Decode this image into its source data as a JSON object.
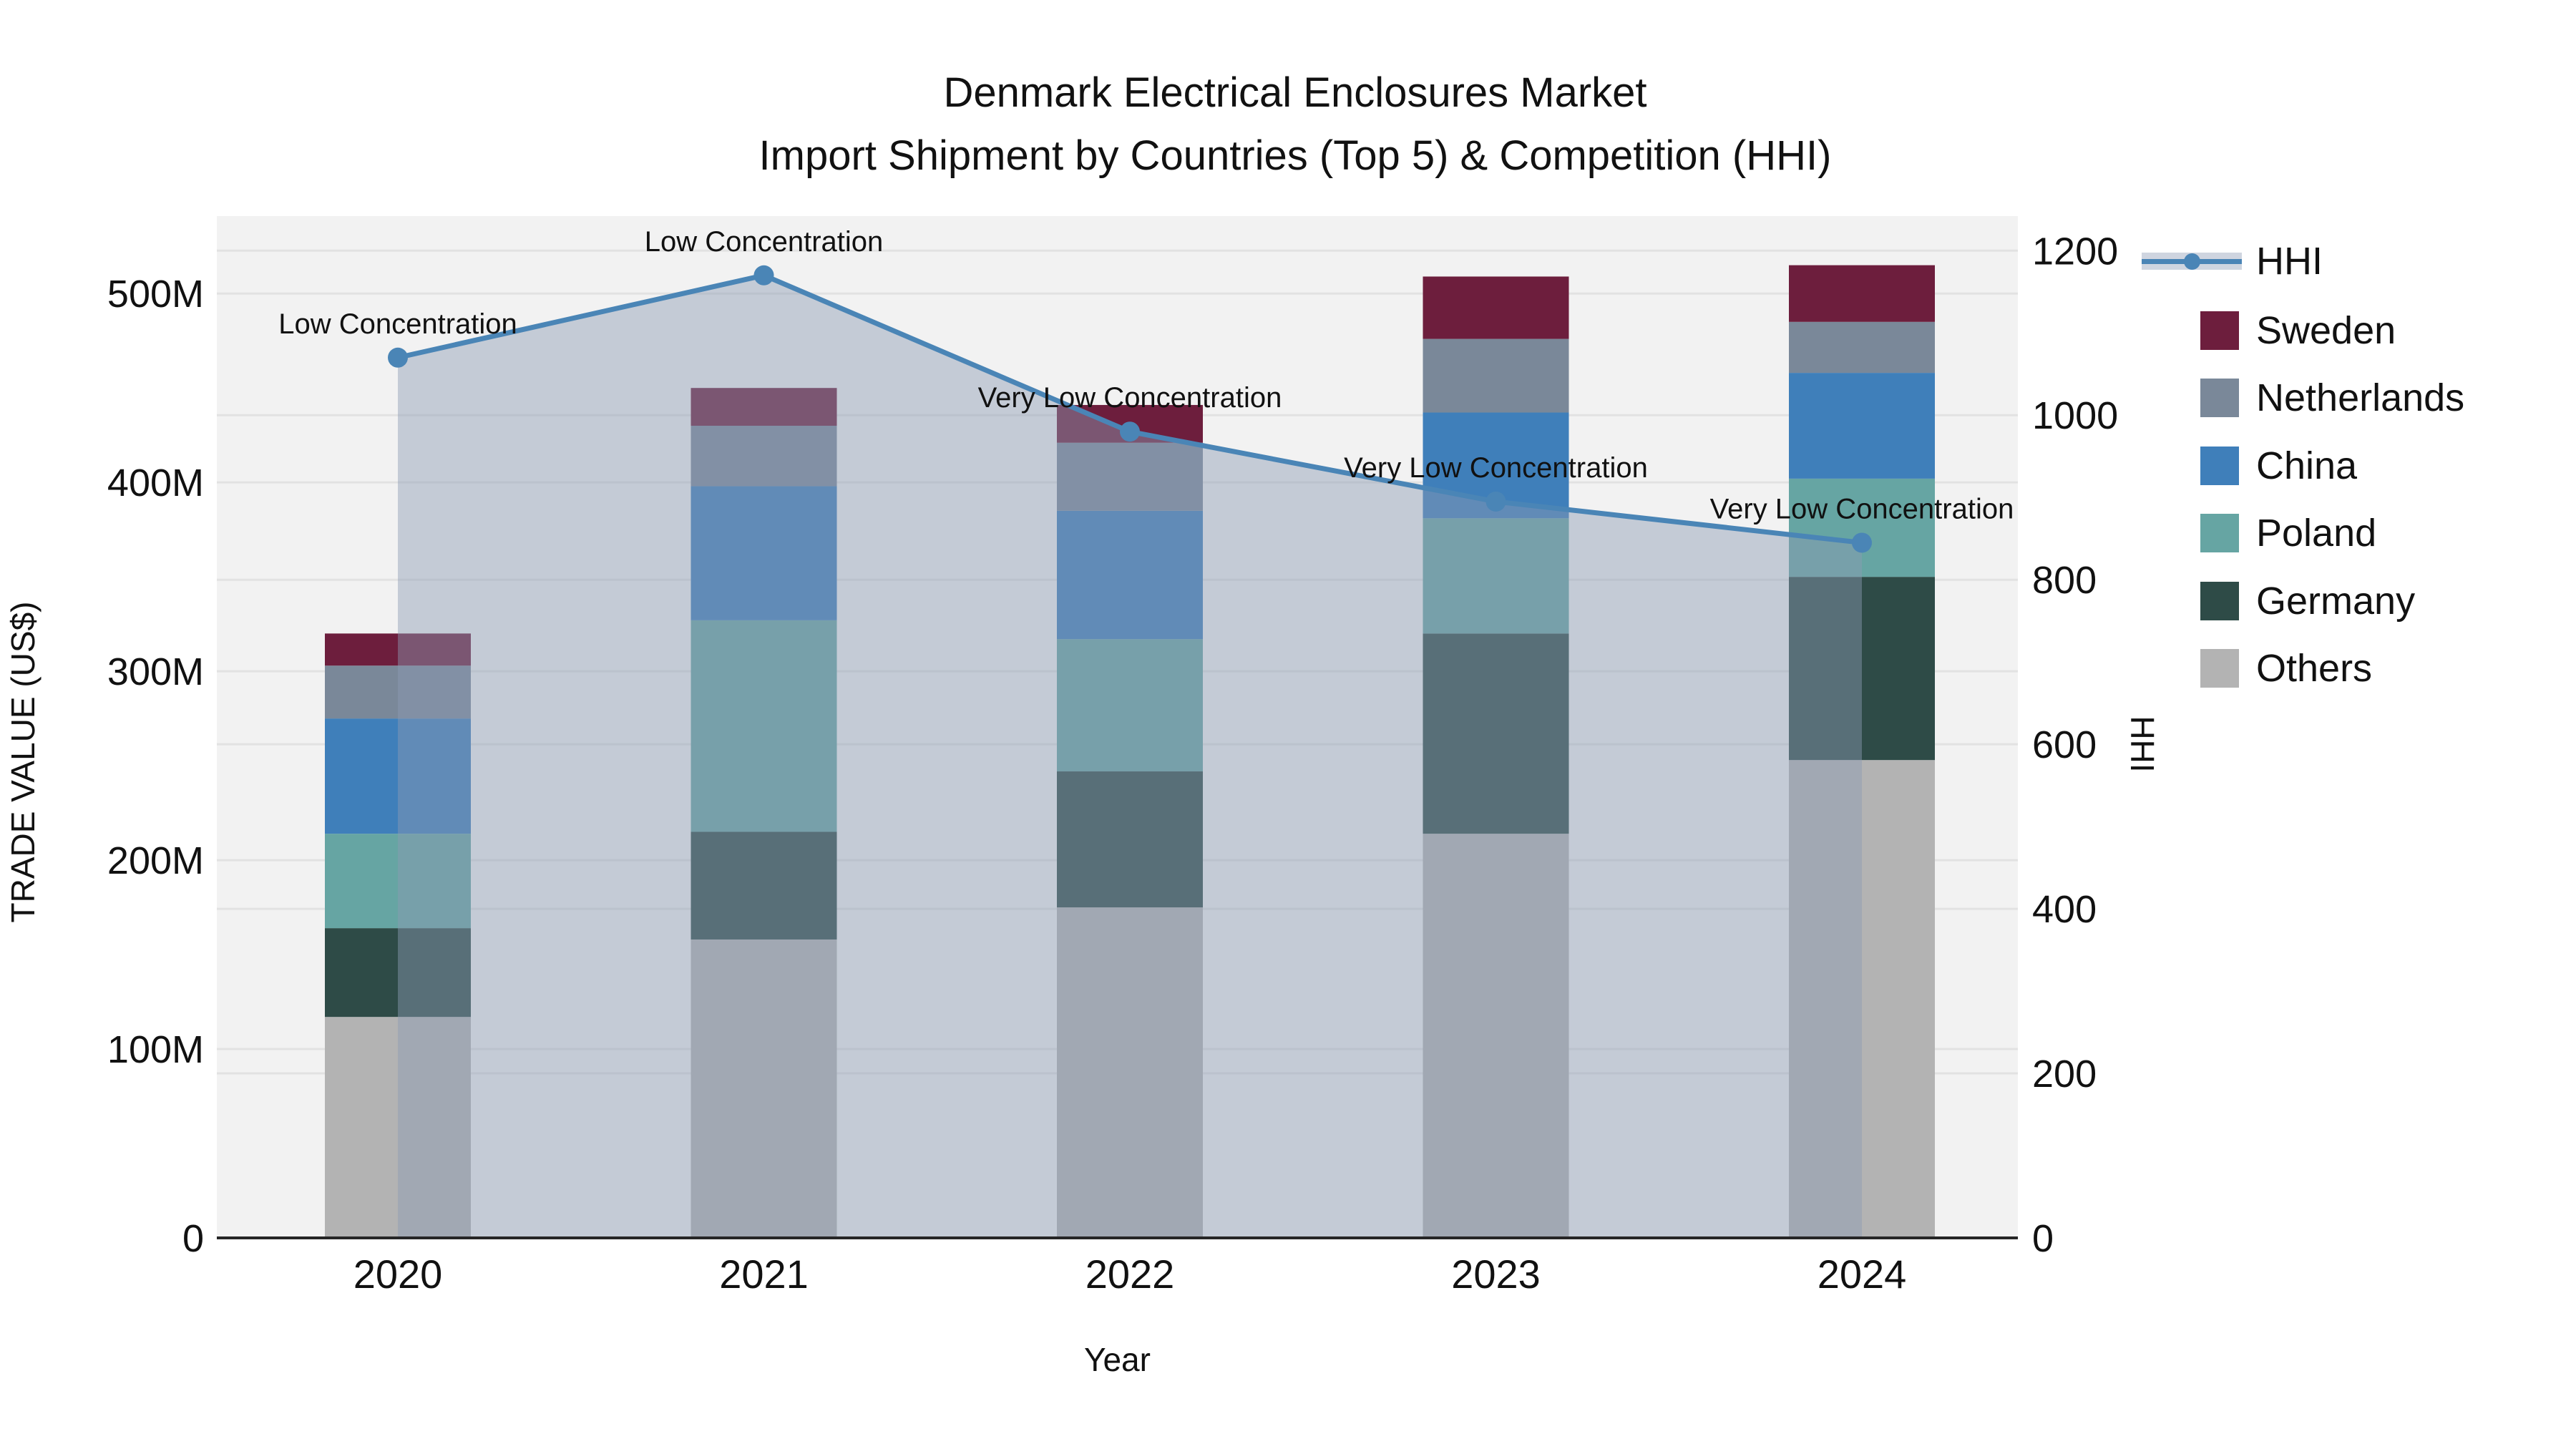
{
  "title": {
    "line1": "Denmark Electrical Enclosures Market",
    "line2": "Import Shipment by Countries (Top 5) & Competition (HHI)"
  },
  "legend": {
    "items": [
      {
        "label": "HHI",
        "type": "line",
        "color": "#4a85b6",
        "band_color": "#cfd5e0"
      },
      {
        "label": "Sweden",
        "type": "box",
        "color": "#6d1e3d"
      },
      {
        "label": "Netherlands",
        "type": "box",
        "color": "#7a8899"
      },
      {
        "label": "China",
        "type": "box",
        "color": "#3f7fba"
      },
      {
        "label": "Poland",
        "type": "box",
        "color": "#66a5a3"
      },
      {
        "label": "Germany",
        "type": "box",
        "color": "#2e4b47"
      },
      {
        "label": "Others",
        "type": "box",
        "color": "#b3b3b3"
      }
    ]
  },
  "chart_data": {
    "type": "bar",
    "subtype": "stacked-bar-with-line",
    "title": "Denmark Electrical Enclosures Market — Import Shipment by Countries (Top 5) & Competition (HHI)",
    "xlabel": "Year",
    "ylabel_left": "TRADE VALUE (US$)",
    "ylabel_right": "HHI",
    "categories": [
      "2020",
      "2021",
      "2022",
      "2023",
      "2024"
    ],
    "series": [
      {
        "name": "Others",
        "color": "#b3b3b3",
        "values": [
          117,
          158,
          175,
          214,
          253
        ]
      },
      {
        "name": "Germany",
        "color": "#2e4b47",
        "values": [
          47,
          57,
          72,
          106,
          97
        ]
      },
      {
        "name": "Poland",
        "color": "#66a5a3",
        "values": [
          50,
          112,
          70,
          61,
          52
        ]
      },
      {
        "name": "China",
        "color": "#3f7fba",
        "values": [
          61,
          71,
          68,
          56,
          56
        ]
      },
      {
        "name": "Netherlands",
        "color": "#7a8899",
        "values": [
          28,
          32,
          36,
          39,
          27
        ]
      },
      {
        "name": "Sweden",
        "color": "#6d1e3d",
        "values": [
          17,
          20,
          20,
          33,
          30
        ]
      }
    ],
    "bar_totals_musd": [
      320,
      450,
      441,
      509,
      515
    ],
    "line_series": {
      "name": "HHI",
      "color": "#4a85b6",
      "area_fill": "rgba(140,156,180,0.45)",
      "values": [
        1070,
        1170,
        980,
        895,
        845
      ]
    },
    "annotations": [
      {
        "category": "2020",
        "text": "Low Concentration"
      },
      {
        "category": "2021",
        "text": "Low Concentration"
      },
      {
        "category": "2022",
        "text": "Very Low Concentration"
      },
      {
        "category": "2023",
        "text": "Very Low Concentration"
      },
      {
        "category": "2024",
        "text": "Very Low Concentration"
      }
    ],
    "y_left": {
      "label": "TRADE VALUE (US$)",
      "tick_values": [
        0,
        100,
        200,
        300,
        400,
        500
      ],
      "tick_labels": [
        "0",
        "100M",
        "200M",
        "300M",
        "400M",
        "500M"
      ],
      "range_musd": [
        0,
        541
      ]
    },
    "y_right": {
      "label": "HHI",
      "tick_values": [
        0,
        200,
        400,
        600,
        800,
        1000,
        1200
      ],
      "tick_labels": [
        "0",
        "200",
        "400",
        "600",
        "800",
        "1000",
        "1200"
      ],
      "range": [
        0,
        1242
      ]
    },
    "grid": true,
    "legend_position": "right",
    "plot_bg": "#f2f2f2",
    "grid_color": "#e2e2e2",
    "axis_line_color": "#262626",
    "text_color": "#111111"
  }
}
